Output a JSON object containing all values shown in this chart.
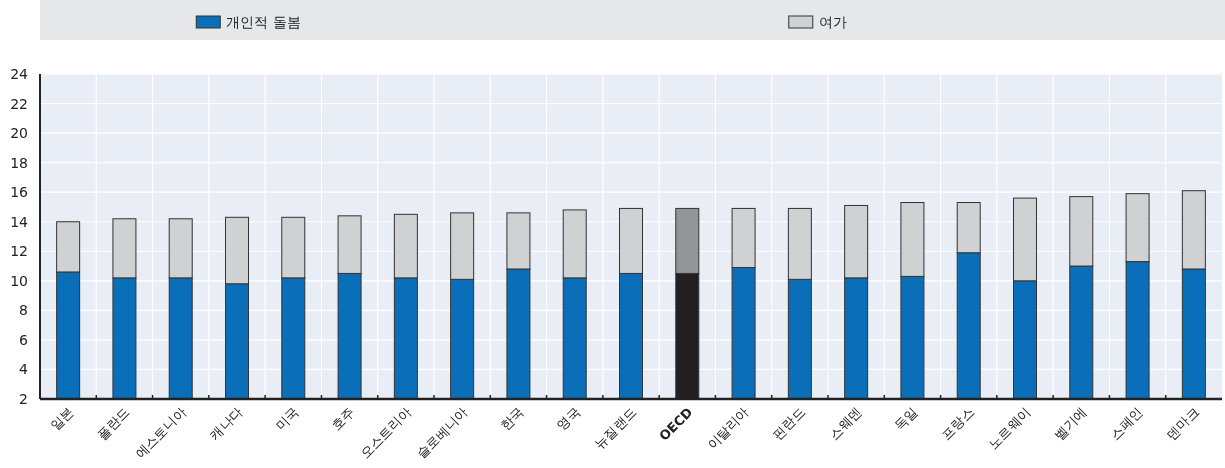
{
  "chart_data": {
    "type": "bar",
    "stacked": true,
    "categories": [
      "일본",
      "폴란드",
      "에스토니아",
      "캐나다",
      "미국",
      "호주",
      "오스트리아",
      "슬로베니아",
      "한국",
      "영국",
      "뉴질랜드",
      "OECD",
      "이탈리아",
      "핀란드",
      "스웨덴",
      "독일",
      "프랑스",
      "노르웨이",
      "벨기에",
      "스페인",
      "덴마크"
    ],
    "series": [
      {
        "name": "개인적 돌봄",
        "color": "#0b6eb8",
        "values": [
          10.6,
          10.2,
          10.2,
          9.8,
          10.2,
          10.5,
          10.2,
          10.1,
          10.8,
          10.2,
          10.5,
          10.5,
          10.9,
          10.1,
          10.2,
          10.3,
          11.9,
          10.0,
          11.0,
          11.3,
          10.8
        ],
        "colors": [
          "#0b6eb8",
          "#0b6eb8",
          "#0b6eb8",
          "#0b6eb8",
          "#0b6eb8",
          "#0b6eb8",
          "#0b6eb8",
          "#0b6eb8",
          "#0b6eb8",
          "#0b6eb8",
          "#0b6eb8",
          "#231f20",
          "#0b6eb8",
          "#0b6eb8",
          "#0b6eb8",
          "#0b6eb8",
          "#0b6eb8",
          "#0b6eb8",
          "#0b6eb8",
          "#0b6eb8",
          "#0b6eb8"
        ]
      },
      {
        "name": "여가",
        "color": "#d0d1d3",
        "values": [
          3.4,
          4.0,
          4.0,
          4.5,
          4.1,
          3.9,
          4.3,
          4.5,
          3.8,
          4.6,
          4.4,
          4.4,
          4.0,
          4.8,
          4.9,
          5.0,
          3.4,
          5.6,
          4.7,
          4.6,
          5.3
        ],
        "colors": [
          "#d0d1d3",
          "#d0d1d3",
          "#d0d1d3",
          "#d0d1d3",
          "#d0d1d3",
          "#d0d1d3",
          "#d0d1d3",
          "#d0d1d3",
          "#d0d1d3",
          "#d0d1d3",
          "#d0d1d3",
          "#939598",
          "#d0d1d3",
          "#d0d1d3",
          "#d0d1d3",
          "#d0d1d3",
          "#d0d1d3",
          "#d0d1d3",
          "#d0d1d3",
          "#d0d1d3",
          "#d0d1d3"
        ]
      }
    ],
    "ylim": [
      2,
      24
    ],
    "yticks": [
      2,
      4,
      6,
      8,
      10,
      12,
      14,
      16,
      18,
      20,
      22,
      24
    ],
    "grid": true,
    "legend": "top"
  }
}
